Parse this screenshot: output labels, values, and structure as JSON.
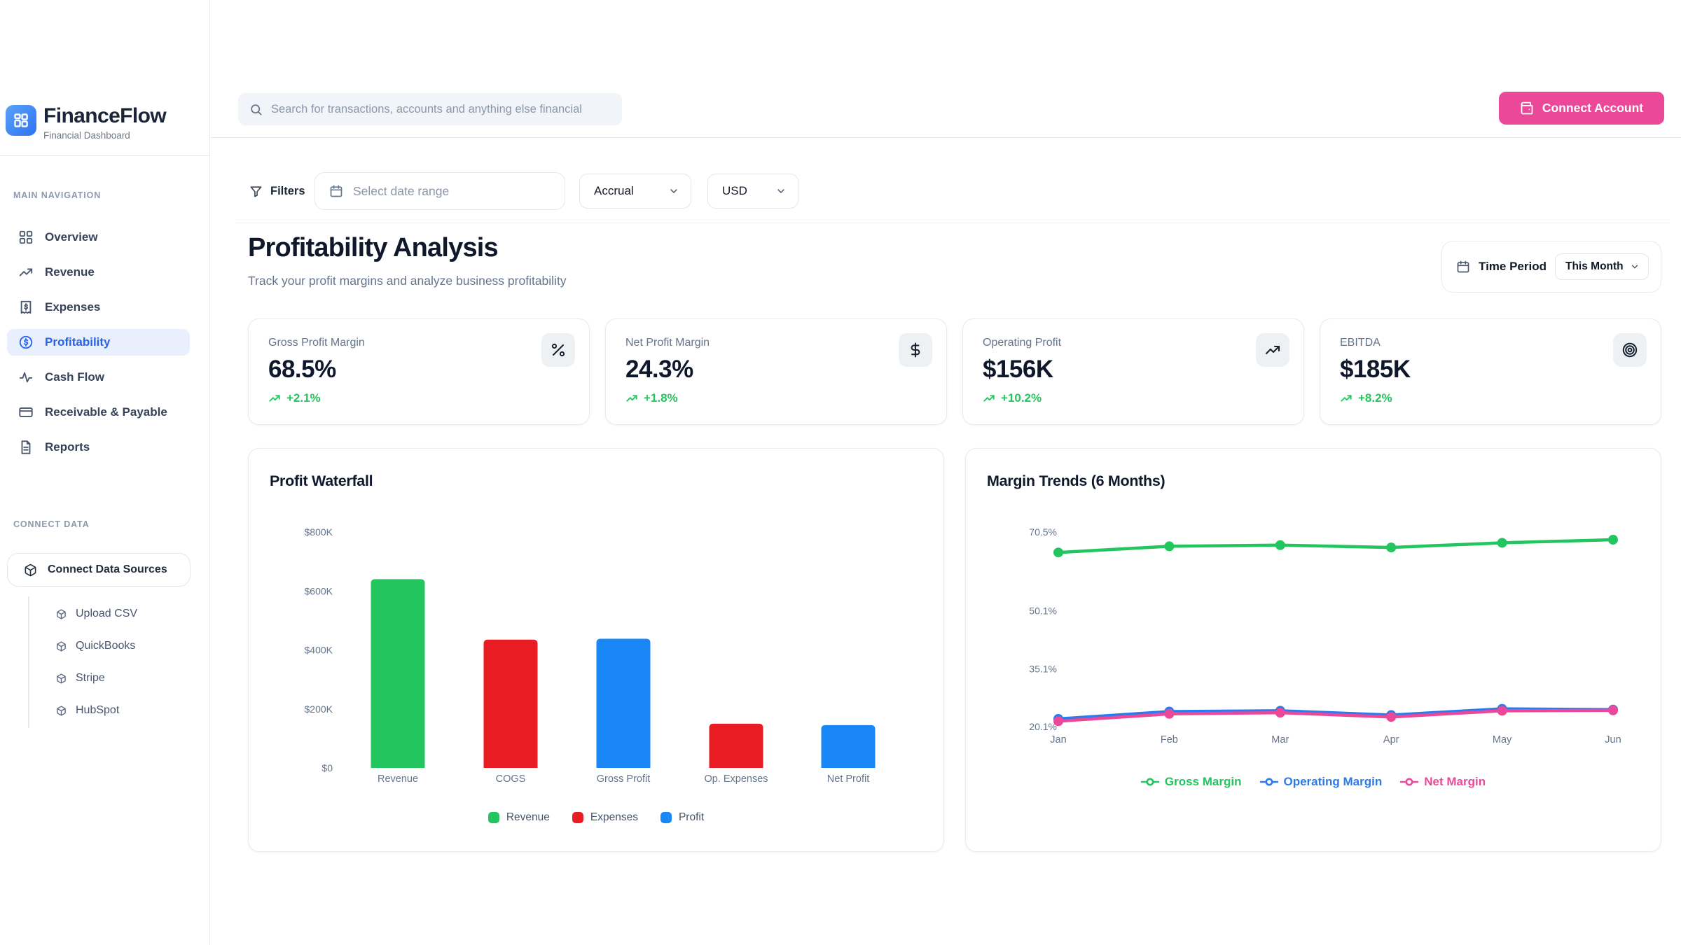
{
  "brand": {
    "name": "FinanceFlow",
    "tagline": "Financial Dashboard"
  },
  "header": {
    "search_placeholder": "Search for transactions, accounts and anything else financial",
    "connect_account": "Connect Account"
  },
  "sidebar": {
    "section_main": "MAIN NAVIGATION",
    "section_connect": "CONNECT DATA",
    "items": [
      {
        "label": "Overview",
        "icon": "grid-icon",
        "active": false
      },
      {
        "label": "Revenue",
        "icon": "trending-up-icon",
        "active": false
      },
      {
        "label": "Expenses",
        "icon": "receipt-icon",
        "active": false
      },
      {
        "label": "Profitability",
        "icon": "dollar-circle-icon",
        "active": true
      },
      {
        "label": "Cash Flow",
        "icon": "activity-icon",
        "active": false
      },
      {
        "label": "Receivable & Payable",
        "icon": "credit-card-icon",
        "active": false
      },
      {
        "label": "Reports",
        "icon": "file-text-icon",
        "active": false
      }
    ],
    "connect_button_label": "Connect Data Sources",
    "sources": [
      {
        "label": "Upload CSV",
        "icon": "cube-icon"
      },
      {
        "label": "QuickBooks",
        "icon": "cube-icon"
      },
      {
        "label": "Stripe",
        "icon": "cube-icon"
      },
      {
        "label": "HubSpot",
        "icon": "cube-icon"
      }
    ]
  },
  "filters": {
    "label": "Filters",
    "date_placeholder": "Select date range",
    "method": "Accrual",
    "currency": "USD"
  },
  "page": {
    "title": "Profitability Analysis",
    "subtitle": "Track your profit margins and analyze business profitability"
  },
  "time_period": {
    "label": "Time Period",
    "value": "This Month"
  },
  "kpis": [
    {
      "label": "Gross Profit Margin",
      "value": "68.5%",
      "delta": "+2.1%",
      "icon": "percent-icon"
    },
    {
      "label": "Net Profit Margin",
      "value": "24.3%",
      "delta": "+1.8%",
      "icon": "dollar-icon"
    },
    {
      "label": "Operating Profit",
      "value": "$156K",
      "delta": "+10.2%",
      "icon": "trending-up-icon"
    },
    {
      "label": "EBITDA",
      "value": "$185K",
      "delta": "+8.2%",
      "icon": "target-icon"
    }
  ],
  "colors": {
    "accent_pink": "#ec4899",
    "active_blue": "#2563eb",
    "positive_green": "#22c55e",
    "revenue_green": "#22c55e",
    "expense_red": "#e91c23",
    "profit_blue": "#1987f5",
    "operating_blue": "#2b7bf0",
    "net_pink": "#ec4899"
  },
  "chart_data": [
    {
      "type": "bar",
      "title": "Profit Waterfall",
      "categories": [
        "Revenue",
        "COGS",
        "Gross Profit",
        "Op. Expenses",
        "Net Profit"
      ],
      "values": [
        640,
        435,
        438,
        150,
        145
      ],
      "unit": "thousand USD",
      "bar_colors": [
        "#22c55e",
        "#e91c23",
        "#1987f5",
        "#e91c23",
        "#1987f5"
      ],
      "ylim": [
        0,
        800
      ],
      "ytick_values": [
        800,
        600,
        400,
        200,
        0
      ],
      "ytick_labels": [
        "$800K",
        "$600K",
        "$400K",
        "$200K",
        "$0"
      ],
      "grid": false,
      "legend_position": "bottom",
      "legend": [
        {
          "label": "Revenue",
          "color": "#22c55e"
        },
        {
          "label": "Expenses",
          "color": "#e91c23"
        },
        {
          "label": "Profit",
          "color": "#1987f5"
        }
      ]
    },
    {
      "type": "line",
      "title": "Margin Trends (6 Months)",
      "x": [
        "Jan",
        "Feb",
        "Mar",
        "Apr",
        "May",
        "Jun"
      ],
      "series": [
        {
          "name": "Gross Margin",
          "color": "#22c55e",
          "values": [
            65.2,
            66.8,
            67.1,
            66.5,
            67.7,
            68.5
          ]
        },
        {
          "name": "Operating Margin",
          "color": "#2b7bf0",
          "values": [
            22.1,
            24.0,
            24.2,
            23.1,
            24.7,
            24.5
          ]
        },
        {
          "name": "Net Margin",
          "color": "#ec4899",
          "values": [
            21.5,
            23.4,
            23.7,
            22.6,
            24.2,
            24.3
          ]
        }
      ],
      "ytick_values": [
        70.5,
        50.1,
        35.1,
        20.1
      ],
      "ytick_labels": [
        "70.5%",
        "50.1%",
        "35.1%",
        "20.1%"
      ],
      "ylim": [
        20.1,
        70.5
      ],
      "grid": false,
      "legend_position": "bottom"
    }
  ]
}
